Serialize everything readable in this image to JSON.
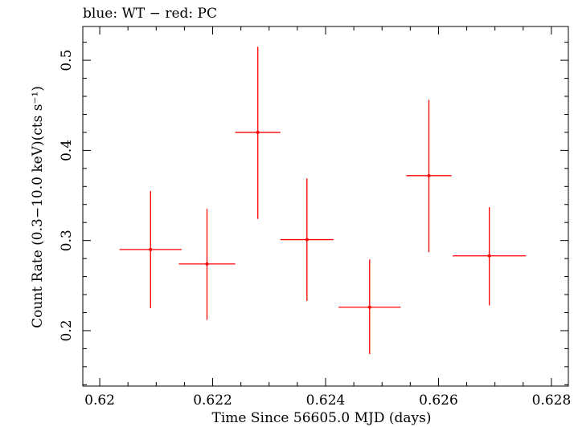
{
  "chart_data": {
    "type": "scatter",
    "title": "blue: WT − red: PC",
    "xlabel": "Time Since 56605.0 MJD (days)",
    "ylabel": "Count Rate (0.3−10.0 keV)(cts s⁻¹)",
    "xlim": [
      0.6197,
      0.6283
    ],
    "ylim": [
      0.1385,
      0.5375
    ],
    "x_ticks": [
      "0.62",
      "0.622",
      "0.624",
      "0.626",
      "0.628"
    ],
    "x_tick_values": [
      0.62,
      0.622,
      0.624,
      0.626,
      0.628
    ],
    "y_ticks": [
      "0.2",
      "0.3",
      "0.4",
      "0.5"
    ],
    "y_tick_values": [
      0.2,
      0.3,
      0.4,
      0.5
    ],
    "grid": false,
    "series": [
      {
        "color": "#ff0000",
        "points": [
          {
            "x": 0.6209,
            "y": 0.29,
            "xerr": 0.00055,
            "ylo": 0.225,
            "yhi": 0.355
          },
          {
            "x": 0.6219,
            "y": 0.274,
            "xerr": 0.0005,
            "ylo": 0.212,
            "yhi": 0.335
          },
          {
            "x": 0.6228,
            "y": 0.42,
            "xerr": 0.0004,
            "ylo": 0.324,
            "yhi": 0.515
          },
          {
            "x": 0.62367,
            "y": 0.301,
            "xerr": 0.00047,
            "ylo": 0.233,
            "yhi": 0.369
          },
          {
            "x": 0.62478,
            "y": 0.226,
            "xerr": 0.00055,
            "ylo": 0.174,
            "yhi": 0.279
          },
          {
            "x": 0.62583,
            "y": 0.372,
            "xerr": 0.0004,
            "ylo": 0.287,
            "yhi": 0.456
          },
          {
            "x": 0.6269,
            "y": 0.283,
            "xerr": 0.00065,
            "ylo": 0.228,
            "yhi": 0.337
          }
        ]
      }
    ]
  }
}
